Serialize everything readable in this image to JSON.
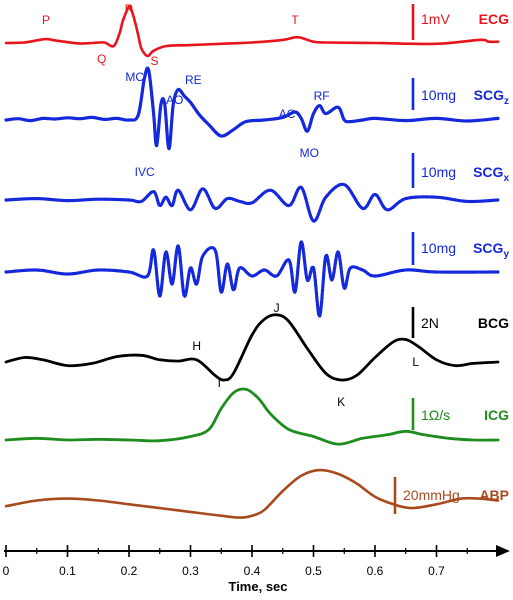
{
  "chart_data": {
    "type": "line",
    "xlabel": "Time, sec",
    "xlim": [
      0,
      0.8
    ],
    "x_ticks": [
      "0",
      "0.1",
      "0.2",
      "0.3",
      "0.4",
      "0.5",
      "0.6",
      "0.7"
    ],
    "series": [
      {
        "name": "ECG",
        "scale_label": "1mV",
        "color": "#e8141c",
        "style": "solid",
        "x": [
          0,
          0.03,
          0.05,
          0.065,
          0.08,
          0.1,
          0.12,
          0.14,
          0.16,
          0.175,
          0.185,
          0.19,
          0.2,
          0.205,
          0.21,
          0.215,
          0.22,
          0.23,
          0.24,
          0.26,
          0.3,
          0.35,
          0.4,
          0.45,
          0.47,
          0.48,
          0.5,
          0.52,
          0.6,
          0.7,
          0.77,
          0.785,
          0.8
        ],
        "y": [
          0,
          0.02,
          0.1,
          0.15,
          0.1,
          0.03,
          -0.02,
          0.0,
          0.02,
          -0.12,
          0.4,
          0.85,
          1.4,
          1.2,
          0.8,
          0.3,
          -0.2,
          -0.5,
          -0.3,
          -0.12,
          -0.08,
          -0.03,
          0.02,
          0.12,
          0.22,
          0.2,
          0.05,
          0.02,
          0.0,
          -0.03,
          0.12,
          0.05,
          0.05
        ],
        "annotations": [
          {
            "label": "P",
            "x": 0.065
          },
          {
            "label": "Q",
            "x": 0.175
          },
          {
            "label": "R",
            "x": 0.2
          },
          {
            "label": "S",
            "x": 0.23
          },
          {
            "label": "T",
            "x": 0.47
          }
        ]
      },
      {
        "name": "SCGz",
        "name_main": "SCG",
        "name_sub": "z",
        "scale_label": "10mg",
        "color": "#1428dc",
        "style": "solid",
        "x": [
          0,
          0.02,
          0.04,
          0.06,
          0.08,
          0.1,
          0.12,
          0.14,
          0.16,
          0.18,
          0.2,
          0.215,
          0.225,
          0.232,
          0.24,
          0.245,
          0.252,
          0.258,
          0.265,
          0.272,
          0.28,
          0.29,
          0.3,
          0.315,
          0.33,
          0.35,
          0.37,
          0.39,
          0.42,
          0.45,
          0.47,
          0.48,
          0.49,
          0.5,
          0.51,
          0.52,
          0.54,
          0.55,
          0.56,
          0.58,
          0.6,
          0.65,
          0.7,
          0.75,
          0.8
        ],
        "y": [
          0,
          0.04,
          -0.02,
          0.05,
          0.03,
          0.07,
          0.04,
          0.08,
          0.02,
          0.05,
          0.0,
          0.15,
          1.3,
          1.55,
          0.2,
          -0.8,
          0.5,
          0.5,
          -0.9,
          0.5,
          0.95,
          0.75,
          0.55,
          0.15,
          -0.15,
          -0.5,
          -0.3,
          -0.05,
          0.0,
          0.08,
          0.25,
          0.05,
          -0.35,
          0.2,
          0.45,
          0.2,
          0.4,
          0.0,
          -0.05,
          0.0,
          0.05,
          -0.02,
          0.05,
          -0.03,
          0.05
        ],
        "annotations": [
          {
            "label": "MC",
            "x": 0.232
          },
          {
            "label": "IVC",
            "x": 0.245
          },
          {
            "label": "AO",
            "x": 0.258
          },
          {
            "label": "RE",
            "x": 0.285
          },
          {
            "label": "AC",
            "x": 0.47
          },
          {
            "label": "MO",
            "x": 0.49
          },
          {
            "label": "RF",
            "x": 0.51
          }
        ]
      },
      {
        "name": "SCGx",
        "name_main": "SCG",
        "name_sub": "x",
        "scale_label": "10mg",
        "color": "#1428dc",
        "style": "dotted",
        "x": [
          0,
          0.05,
          0.1,
          0.15,
          0.2,
          0.22,
          0.24,
          0.25,
          0.26,
          0.27,
          0.28,
          0.3,
          0.32,
          0.34,
          0.36,
          0.38,
          0.4,
          0.43,
          0.46,
          0.48,
          0.5,
          0.52,
          0.55,
          0.58,
          0.6,
          0.62,
          0.65,
          0.7,
          0.75,
          0.8
        ],
        "y": [
          0,
          0.05,
          -0.02,
          0.03,
          0.0,
          -0.05,
          0.3,
          -0.2,
          0.1,
          -0.2,
          0.35,
          -0.35,
          0.4,
          -0.3,
          0.05,
          -0.05,
          -0.1,
          0.35,
          -0.2,
          0.45,
          -0.75,
          0.1,
          0.55,
          -0.3,
          0.2,
          -0.35,
          0.05,
          0.1,
          -0.05,
          0.0
        ]
      },
      {
        "name": "SCGy",
        "name_main": "SCG",
        "name_sub": "y",
        "scale_label": "10mg",
        "color": "#1428dc",
        "style": "dotted",
        "x": [
          0,
          0.05,
          0.1,
          0.15,
          0.2,
          0.23,
          0.24,
          0.25,
          0.26,
          0.27,
          0.28,
          0.29,
          0.3,
          0.31,
          0.32,
          0.34,
          0.35,
          0.36,
          0.37,
          0.38,
          0.4,
          0.42,
          0.44,
          0.46,
          0.47,
          0.48,
          0.49,
          0.5,
          0.51,
          0.52,
          0.53,
          0.54,
          0.55,
          0.56,
          0.58,
          0.6,
          0.65,
          0.7,
          0.8
        ],
        "y": [
          0,
          0.05,
          -0.05,
          0.05,
          0.0,
          -0.1,
          0.55,
          -0.6,
          0.5,
          -0.3,
          0.65,
          -0.6,
          0.1,
          -0.3,
          0.4,
          0.55,
          -0.5,
          0.2,
          -0.45,
          0.1,
          -0.1,
          0.05,
          -0.1,
          0.3,
          -0.5,
          0.75,
          -0.2,
          0.1,
          -1.1,
          0.4,
          -0.2,
          0.5,
          -0.4,
          0.1,
          0.05,
          -0.1,
          0.05,
          0.0,
          0.0
        ]
      },
      {
        "name": "BCG",
        "scale_label": "2N",
        "color": "#000000",
        "style": "solid",
        "x": [
          0,
          0.03,
          0.06,
          0.1,
          0.14,
          0.18,
          0.22,
          0.25,
          0.28,
          0.31,
          0.34,
          0.355,
          0.37,
          0.4,
          0.42,
          0.44,
          0.46,
          0.49,
          0.52,
          0.545,
          0.57,
          0.6,
          0.63,
          0.65,
          0.67,
          0.7,
          0.73,
          0.76,
          0.8
        ],
        "y": [
          0,
          0.1,
          0.05,
          -0.08,
          -0.03,
          0.12,
          0.15,
          0.05,
          0.02,
          0.05,
          -0.3,
          -0.4,
          -0.25,
          0.6,
          0.95,
          1.05,
          0.9,
          0.3,
          -0.25,
          -0.4,
          -0.3,
          0.1,
          0.45,
          0.5,
          0.35,
          0.05,
          -0.08,
          -0.03,
          0.0
        ],
        "annotations": [
          {
            "label": "H",
            "x": 0.31
          },
          {
            "label": "I",
            "x": 0.355
          },
          {
            "label": "J",
            "x": 0.44
          },
          {
            "label": "K",
            "x": 0.545
          },
          {
            "label": "L",
            "x": 0.65
          }
        ]
      },
      {
        "name": "ICG",
        "scale_label": "1Ω/s",
        "color": "#1e8c1e",
        "style": "solid",
        "x": [
          0,
          0.05,
          0.1,
          0.15,
          0.2,
          0.25,
          0.3,
          0.33,
          0.35,
          0.37,
          0.39,
          0.41,
          0.43,
          0.46,
          0.5,
          0.54,
          0.58,
          0.62,
          0.65,
          0.68,
          0.72,
          0.76,
          0.8
        ],
        "y": [
          0,
          0.05,
          0.0,
          0.02,
          0.0,
          -0.02,
          0.1,
          0.3,
          0.9,
          1.35,
          1.45,
          1.2,
          0.75,
          0.3,
          0.1,
          -0.12,
          0.05,
          0.15,
          0.25,
          0.15,
          0.05,
          0.0,
          0.0
        ]
      },
      {
        "name": "ABP",
        "scale_label": "20mmHg",
        "color": "#a84a1e",
        "style": "solid",
        "x": [
          0,
          0.05,
          0.1,
          0.15,
          0.2,
          0.25,
          0.3,
          0.35,
          0.38,
          0.4,
          0.42,
          0.45,
          0.48,
          0.51,
          0.54,
          0.57,
          0.6,
          0.63,
          0.66,
          0.7,
          0.74,
          0.77,
          0.8
        ],
        "y": [
          0.1,
          0.25,
          0.3,
          0.25,
          0.15,
          0.05,
          -0.05,
          -0.15,
          -0.2,
          -0.15,
          0.0,
          0.5,
          0.9,
          1.05,
          0.95,
          0.7,
          0.35,
          0.15,
          0.05,
          0.15,
          0.3,
          0.3,
          0.25
        ]
      }
    ]
  }
}
